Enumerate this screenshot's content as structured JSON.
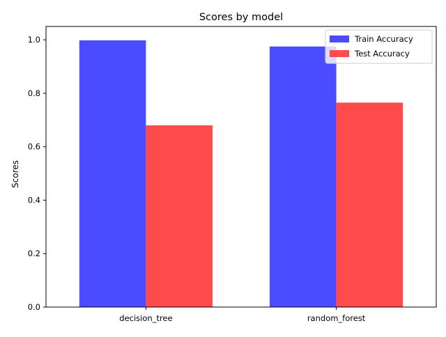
{
  "chart_data": {
    "type": "bar",
    "title": "Scores by model",
    "xlabel": "",
    "ylabel": "Scores",
    "categories": [
      "decision_tree",
      "random_forest"
    ],
    "series": [
      {
        "name": "Train Accuracy",
        "values": [
          0.998,
          0.975
        ],
        "color": "#4b4bff"
      },
      {
        "name": "Test Accuracy",
        "values": [
          0.68,
          0.765
        ],
        "color": "#ff4b4b"
      }
    ],
    "ylim": [
      0,
      1.05
    ],
    "yticks": [
      "0.0",
      "0.2",
      "0.4",
      "0.6",
      "0.8",
      "1.0"
    ],
    "grid": false,
    "legend_position": "top-right"
  }
}
